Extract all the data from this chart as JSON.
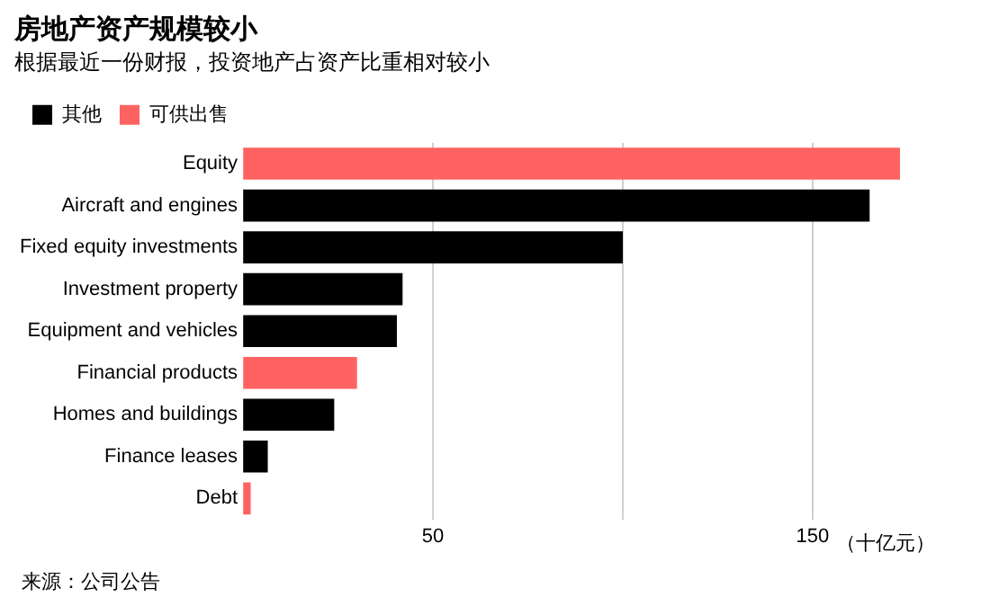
{
  "chart_data": {
    "type": "bar",
    "orientation": "horizontal",
    "title": "房地产资产规模较小",
    "subtitle": "根据最近一份财报，投资地产占资产比重相对较小",
    "xlabel": "（十亿元）",
    "categories": [
      "Equity",
      "Aircraft and engines",
      "Fixed equity investments",
      "Investment property",
      "Equipment and vehicles",
      "Financial products",
      "Homes and buildings",
      "Finance leases",
      "Debt"
    ],
    "series": [
      {
        "name": "其他",
        "color": "#000000",
        "values": [
          null,
          165,
          100,
          42,
          40.5,
          null,
          24,
          6.5,
          null
        ]
      },
      {
        "name": "可供出售",
        "color": "#ff6361",
        "values": [
          173,
          null,
          null,
          null,
          null,
          30,
          null,
          null,
          2
        ]
      }
    ],
    "xlim": [
      0,
      173
    ],
    "xticks": [
      50,
      {
        "value": 100,
        "label": null
      },
      150
    ],
    "grid": "x",
    "legend": "top left",
    "annotations": [
      "来源：公司公告"
    ]
  }
}
